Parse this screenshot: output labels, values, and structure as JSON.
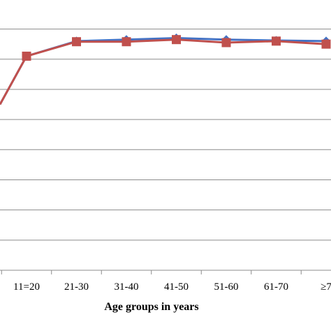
{
  "chart_data": {
    "type": "line",
    "title": "",
    "xlabel": "Age groups in years",
    "ylabel": "",
    "categories": [
      "11=20",
      "21-30",
      "31-40",
      "41-50",
      "51-60",
      "61-70",
      "≥7"
    ],
    "ylim": [
      0,
      8.5
    ],
    "grid": true,
    "series": [
      {
        "color": "#4472C4",
        "marker": "diamond",
        "values": [
          7.1,
          7.6,
          7.65,
          7.7,
          7.65,
          7.62,
          7.6
        ]
      },
      {
        "color": "#C0504D",
        "marker": "square",
        "values": [
          7.1,
          7.58,
          7.58,
          7.65,
          7.55,
          7.6,
          7.5
        ]
      }
    ],
    "left_edge_values": [
      5.5,
      5.5
    ]
  }
}
